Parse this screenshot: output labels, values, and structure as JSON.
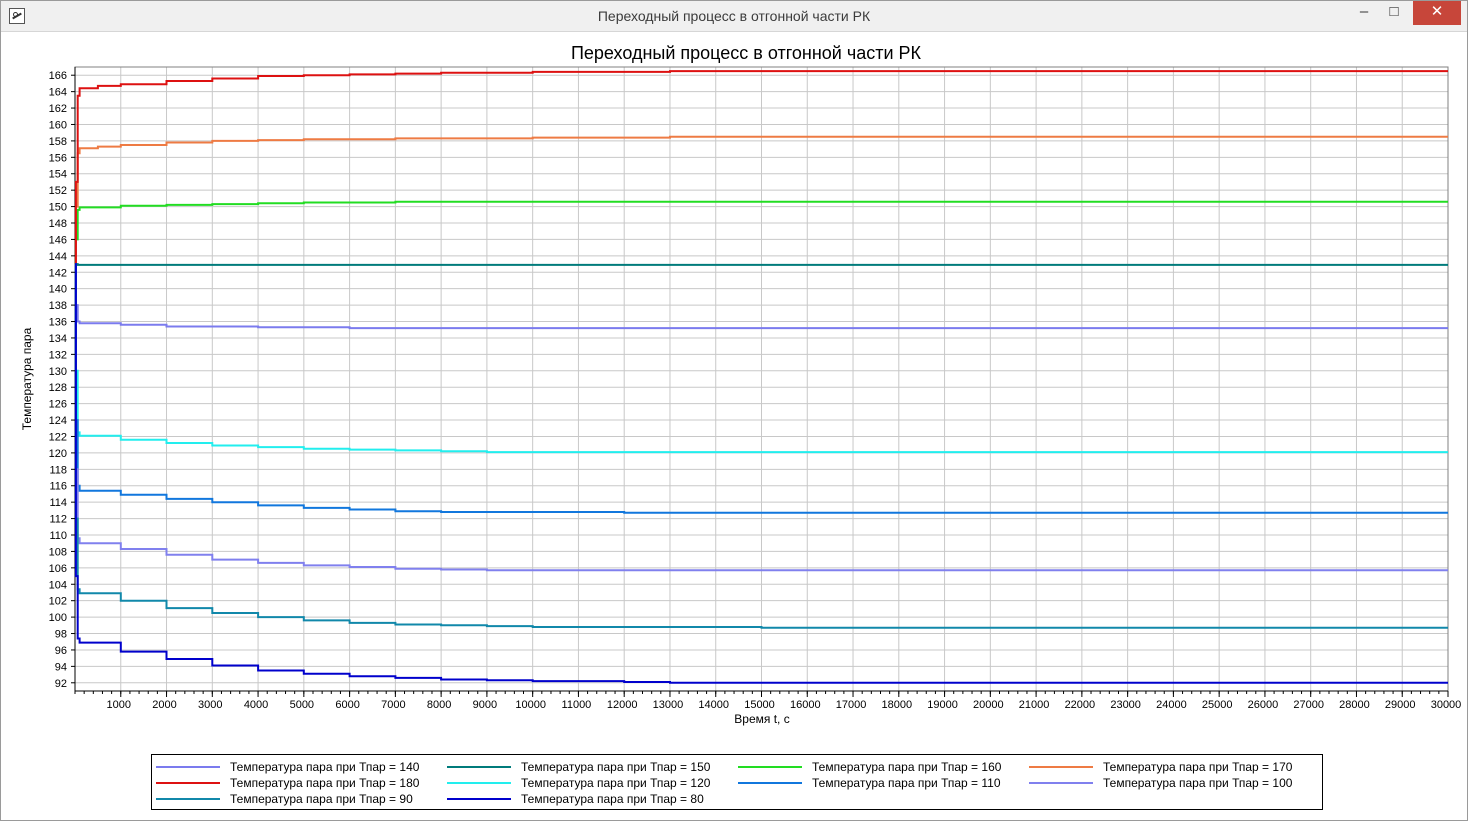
{
  "window": {
    "title": "Переходный процесс в отгонной части РК",
    "icon": "app-chart-icon",
    "minimize_label": "–",
    "maximize_label": "□",
    "close_label": "✕"
  },
  "chart_data": {
    "type": "line",
    "title": "Переходный процесс в отгонной части РК",
    "xlabel": "Время t, c",
    "ylabel": "Температура пара",
    "xlim": [
      0,
      30000
    ],
    "ylim": [
      91,
      167
    ],
    "xticks": [
      1000,
      2000,
      3000,
      4000,
      5000,
      6000,
      7000,
      8000,
      9000,
      10000,
      11000,
      12000,
      13000,
      14000,
      15000,
      16000,
      17000,
      18000,
      19000,
      20000,
      21000,
      22000,
      23000,
      24000,
      25000,
      26000,
      27000,
      28000,
      29000,
      30000
    ],
    "xtick_labels": [
      "1000",
      "2000",
      "3000",
      "4000",
      "5000",
      "6000",
      "7000",
      "8000",
      "9000",
      "10000",
      "11000",
      "12000",
      "13000",
      "14000",
      "15000",
      "16000",
      "17000",
      "18000",
      "19000",
      "20000",
      "21000",
      "22000",
      "23000",
      "24000",
      "25000",
      "26000",
      "27000",
      "28000",
      "29000",
      "30000"
    ],
    "yticks": [
      92,
      94,
      96,
      98,
      100,
      102,
      104,
      106,
      108,
      110,
      112,
      114,
      116,
      118,
      120,
      122,
      124,
      126,
      128,
      130,
      132,
      134,
      136,
      138,
      140,
      142,
      144,
      146,
      148,
      150,
      152,
      154,
      156,
      158,
      160,
      162,
      164,
      166
    ],
    "ytick_labels": [
      "92",
      "94",
      "96",
      "98",
      "100",
      "102",
      "104",
      "106",
      "108",
      "110",
      "112",
      "114",
      "116",
      "118",
      "120",
      "122",
      "124",
      "126",
      "128",
      "130",
      "132",
      "134",
      "136",
      "138",
      "140",
      "142",
      "144",
      "146",
      "148",
      "150",
      "152",
      "154",
      "156",
      "158",
      "160",
      "162",
      "164",
      "166"
    ],
    "grid": true,
    "legend_position": "bottom",
    "series": [
      {
        "name": "Температура пара при Тпар = 140",
        "color": "#7b7bee",
        "x": [
          0,
          20,
          60,
          100,
          1000,
          2000,
          4000,
          6000,
          10000,
          20000,
          30000
        ],
        "y": [
          143,
          138,
          136,
          135.8,
          135.6,
          135.4,
          135.3,
          135.2,
          135.2,
          135.2,
          135.2
        ]
      },
      {
        "name": "Температура пара при Тпар = 150",
        "color": "#007b7b",
        "x": [
          0,
          20,
          60,
          100,
          1000,
          5000,
          10000,
          20000,
          30000
        ],
        "y": [
          143,
          143,
          142.9,
          142.9,
          142.9,
          142.9,
          142.9,
          142.9,
          142.9
        ]
      },
      {
        "name": "Температура пара при Тпар = 160",
        "color": "#22dd22",
        "x": [
          0,
          20,
          60,
          100,
          1000,
          2000,
          3000,
          4000,
          5000,
          6000,
          7000,
          10000,
          20000,
          30000
        ],
        "y": [
          143,
          146,
          149.6,
          149.9,
          150.1,
          150.2,
          150.3,
          150.4,
          150.5,
          150.5,
          150.6,
          150.6,
          150.6,
          150.6
        ]
      },
      {
        "name": "Температура пара при Тпар = 170",
        "color": "#ee7b44",
        "x": [
          0,
          20,
          60,
          100,
          500,
          1000,
          2000,
          3000,
          4000,
          5000,
          7000,
          10000,
          13000,
          20000,
          30000
        ],
        "y": [
          143,
          150,
          156.5,
          157.1,
          157.3,
          157.5,
          157.8,
          158.0,
          158.1,
          158.2,
          158.3,
          158.4,
          158.5,
          158.5,
          158.5
        ]
      },
      {
        "name": "Температура пара при Тпар = 180",
        "color": "#dd1111",
        "x": [
          0,
          20,
          60,
          100,
          500,
          1000,
          2000,
          3000,
          4000,
          5000,
          6000,
          7000,
          8000,
          10000,
          13000,
          20000,
          30000
        ],
        "y": [
          143,
          153,
          163.5,
          164.4,
          164.7,
          164.9,
          165.3,
          165.6,
          165.9,
          166.0,
          166.1,
          166.2,
          166.3,
          166.4,
          166.5,
          166.5,
          166.5
        ]
      },
      {
        "name": "Температура пара при Тпар = 120",
        "color": "#22eeee",
        "x": [
          0,
          20,
          60,
          100,
          1000,
          2000,
          3000,
          4000,
          5000,
          6000,
          7000,
          8000,
          9000,
          10000,
          20000,
          30000
        ],
        "y": [
          143,
          130,
          122.5,
          122.1,
          121.6,
          121.2,
          120.9,
          120.7,
          120.5,
          120.4,
          120.3,
          120.2,
          120.1,
          120.1,
          120.1,
          120.1
        ]
      },
      {
        "name": "Температура пара при Тпар = 110",
        "color": "#1177dd",
        "x": [
          0,
          20,
          60,
          100,
          1000,
          2000,
          3000,
          4000,
          5000,
          6000,
          7000,
          8000,
          9000,
          12000,
          20000,
          30000
        ],
        "y": [
          143,
          124,
          116,
          115.4,
          114.9,
          114.4,
          114.0,
          113.6,
          113.3,
          113.1,
          112.9,
          112.8,
          112.8,
          112.7,
          112.7,
          112.7
        ]
      },
      {
        "name": "Температура пара при Тпар = 100",
        "color": "#8080ee",
        "x": [
          0,
          20,
          60,
          100,
          1000,
          2000,
          3000,
          4000,
          5000,
          6000,
          7000,
          8000,
          9000,
          12000,
          20000,
          30000
        ],
        "y": [
          143,
          118,
          109.6,
          109.0,
          108.3,
          107.6,
          107.0,
          106.6,
          106.3,
          106.1,
          105.9,
          105.8,
          105.7,
          105.7,
          105.7,
          105.7
        ]
      },
      {
        "name": "Температура пара при Тпар = 90",
        "color": "#1188aa",
        "x": [
          0,
          20,
          60,
          100,
          1000,
          2000,
          3000,
          4000,
          5000,
          6000,
          7000,
          8000,
          9000,
          10000,
          15000,
          20000,
          30000
        ],
        "y": [
          143,
          112,
          103.4,
          102.9,
          102.0,
          101.1,
          100.5,
          100.0,
          99.6,
          99.3,
          99.1,
          99.0,
          98.9,
          98.8,
          98.7,
          98.7,
          98.7
        ]
      },
      {
        "name": "Температура пара при Тпар = 80",
        "color": "#0000cc",
        "x": [
          0,
          20,
          60,
          100,
          1000,
          2000,
          3000,
          4000,
          5000,
          6000,
          7000,
          8000,
          9000,
          10000,
          12000,
          13000,
          20000,
          30000
        ],
        "y": [
          143,
          105,
          97.4,
          96.9,
          95.8,
          94.9,
          94.1,
          93.5,
          93.1,
          92.8,
          92.6,
          92.4,
          92.3,
          92.2,
          92.1,
          92.0,
          92.0,
          92.0
        ]
      }
    ]
  }
}
